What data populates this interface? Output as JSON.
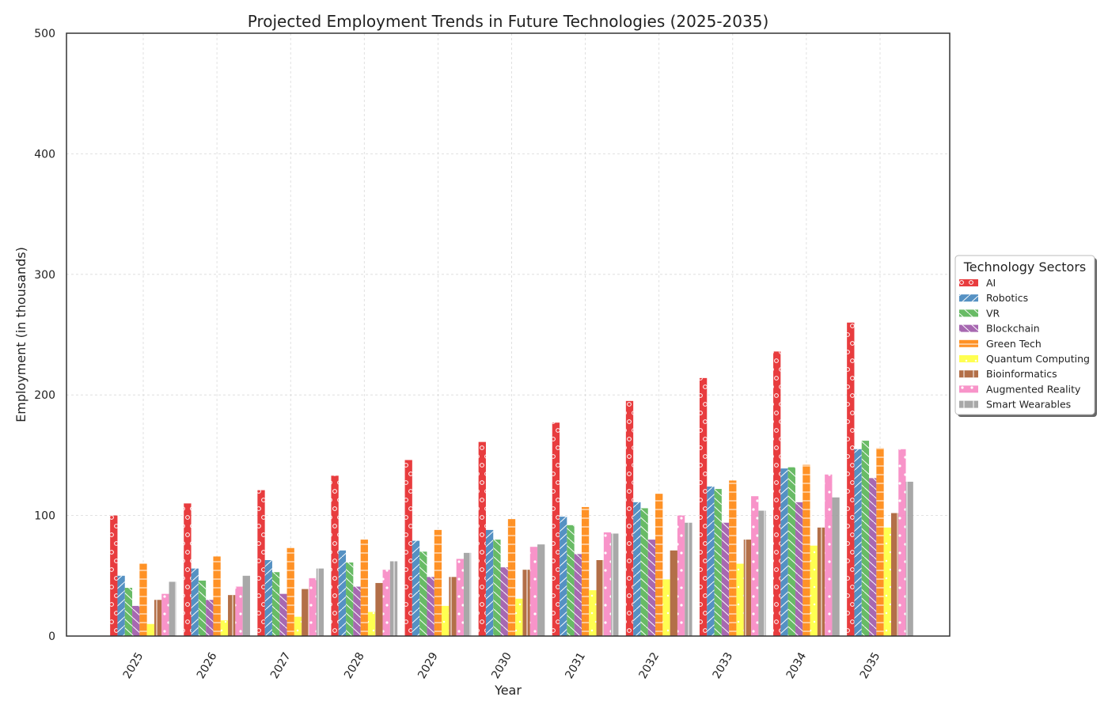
{
  "chart_data": {
    "type": "bar",
    "title": "Projected Employment Trends in Future Technologies (2025-2035)",
    "xlabel": "Year",
    "ylabel": "Employment (in thousands)",
    "ylim": [
      0,
      500
    ],
    "yticks": [
      0,
      100,
      200,
      300,
      400,
      500
    ],
    "grid": true,
    "legend_title": "Technology Sectors",
    "legend_position": "right",
    "categories": [
      "2025",
      "2026",
      "2027",
      "2028",
      "2029",
      "2030",
      "2031",
      "2032",
      "2033",
      "2034",
      "2035"
    ],
    "series": [
      {
        "name": "AI",
        "color": "#e41a1c",
        "pattern": "circles",
        "values": [
          100,
          110,
          121,
          133,
          146,
          161,
          177,
          195,
          214,
          236,
          260
        ]
      },
      {
        "name": "Robotics",
        "color": "#377eb8",
        "pattern": "slash",
        "values": [
          50,
          56,
          63,
          71,
          79,
          88,
          99,
          111,
          124,
          139,
          155
        ]
      },
      {
        "name": "VR",
        "color": "#4daf4a",
        "pattern": "backslash",
        "values": [
          40,
          46,
          53,
          61,
          70,
          80,
          92,
          106,
          122,
          140,
          162
        ]
      },
      {
        "name": "Blockchain",
        "color": "#984ea3",
        "pattern": "backslash",
        "values": [
          25,
          30,
          35,
          41,
          49,
          57,
          68,
          80,
          94,
          111,
          131
        ]
      },
      {
        "name": "Green Tech",
        "color": "#ff7f00",
        "pattern": "hline",
        "values": [
          60,
          66,
          73,
          80,
          88,
          97,
          107,
          118,
          129,
          142,
          156
        ]
      },
      {
        "name": "Quantum Computing",
        "color": "#ffff33",
        "pattern": "stars",
        "values": [
          10,
          13,
          16,
          20,
          25,
          31,
          38,
          47,
          60,
          75,
          90
        ]
      },
      {
        "name": "Bioinformatics",
        "color": "#a65628",
        "pattern": "vline",
        "values": [
          30,
          34,
          39,
          44,
          49,
          55,
          63,
          71,
          80,
          90,
          102
        ]
      },
      {
        "name": "Augmented Reality",
        "color": "#f781bf",
        "pattern": "dots",
        "values": [
          35,
          41,
          48,
          55,
          64,
          74,
          86,
          100,
          116,
          134,
          155
        ]
      },
      {
        "name": "Smart Wearables",
        "color": "#999999",
        "pattern": "vline",
        "values": [
          45,
          50,
          56,
          62,
          69,
          76,
          85,
          94,
          104,
          115,
          128
        ]
      }
    ]
  }
}
